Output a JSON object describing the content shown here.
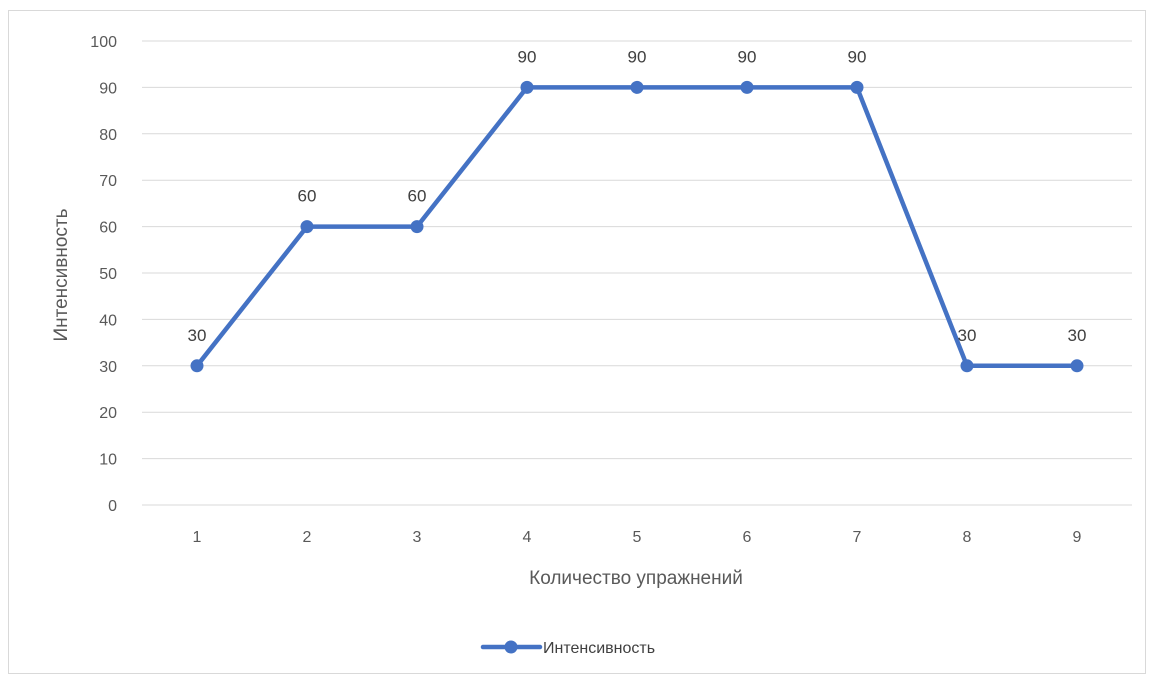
{
  "chart_data": {
    "type": "line",
    "title": "",
    "xlabel": "Количество упражнений",
    "ylabel": "Интенсивность",
    "categories": [
      "1",
      "2",
      "3",
      "4",
      "5",
      "6",
      "7",
      "8",
      "9"
    ],
    "series": [
      {
        "name": "Интенсивность",
        "values": [
          30,
          60,
          60,
          90,
          90,
          90,
          90,
          30,
          30
        ],
        "color": "#4472c4"
      }
    ],
    "ylim": [
      0,
      100
    ],
    "yticks": [
      0,
      10,
      20,
      30,
      40,
      50,
      60,
      70,
      80,
      90,
      100
    ],
    "grid": true,
    "legend_position": "bottom",
    "data_labels": true
  }
}
